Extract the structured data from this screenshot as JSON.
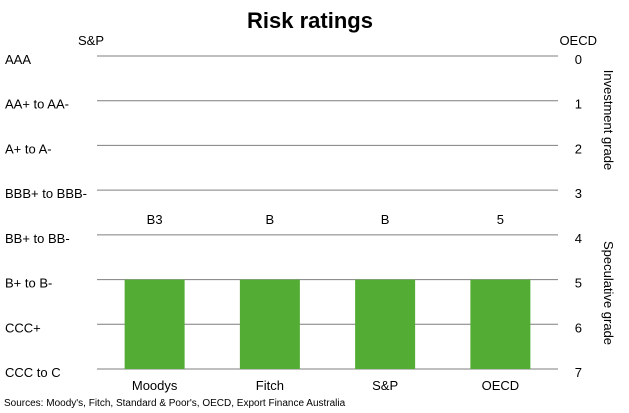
{
  "chart_data": {
    "type": "bar",
    "title": "Risk ratings",
    "left_axis_title": "S&P",
    "right_axis_title": "OECD",
    "left_tick_labels": [
      "AAA",
      "AA+ to AA-",
      "A+ to A-",
      "BBB+ to BBB-",
      "BB+ to BB-",
      "B+ to B-",
      "CCC+",
      "CCC to C"
    ],
    "right_tick_labels": [
      "0",
      "1",
      "2",
      "3",
      "4",
      "5",
      "6",
      "7"
    ],
    "ylim": [
      0,
      7
    ],
    "y_inverted": true,
    "grid": true,
    "categories": [
      "Moodys",
      "Fitch",
      "S&P",
      "OECD"
    ],
    "values": [
      5,
      5,
      5,
      5
    ],
    "bar_labels": [
      "B3",
      "B",
      "B",
      "5"
    ],
    "bar_color": "#53ad34",
    "right_annotations": [
      "Investment grade",
      "Speculative grade"
    ],
    "source": "Sources: Moody's, Fitch, Standard & Poor's, OECD, Export Finance Australia"
  }
}
